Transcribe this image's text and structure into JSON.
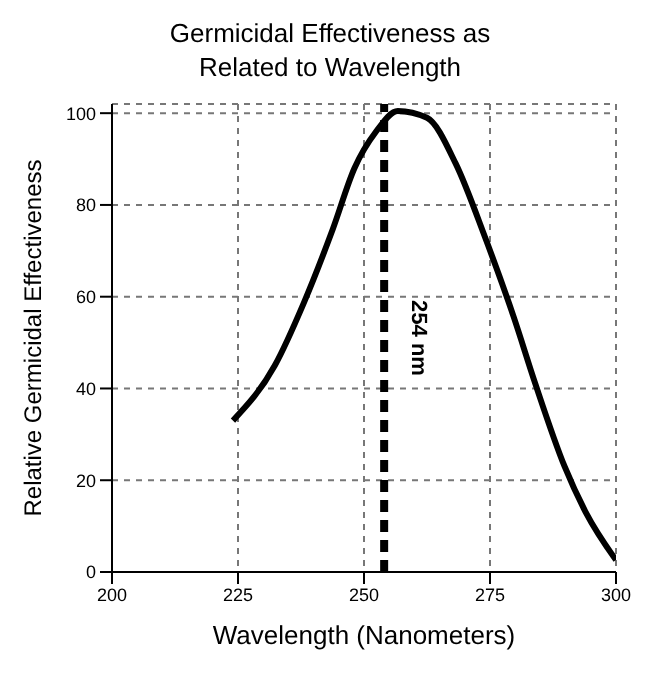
{
  "chart_data": {
    "type": "line",
    "title": "Germicidal Effectiveness as Related to Wavelength",
    "xlabel": "Wavelength (Nanometers)",
    "ylabel": "Relative Germicidal Effectiveness",
    "x": [
      224,
      232.3,
      238,
      243.8,
      248.1,
      252.4,
      256.7,
      262.5,
      268.2,
      274,
      279.7,
      284,
      289.8,
      294,
      300
    ],
    "series": [
      {
        "color": "#000000",
        "values": [
          33,
          45,
          58.5,
          74.7,
          88,
          96,
          100.5,
          99,
          89,
          73,
          55.6,
          41,
          23,
          13,
          2.6
        ]
      }
    ],
    "xlim": [
      200,
      300
    ],
    "xticks": [
      200,
      225,
      250,
      275,
      300
    ],
    "ylim": [
      0,
      102
    ],
    "yticks": [
      0,
      20,
      40,
      60,
      80,
      100
    ],
    "grid": true,
    "marker": "none",
    "line_style": "solid",
    "ref_lines": [
      {
        "axis": "x",
        "value": 254,
        "label": "254 nm",
        "color": "#000000",
        "line_style": "dashed"
      }
    ]
  }
}
